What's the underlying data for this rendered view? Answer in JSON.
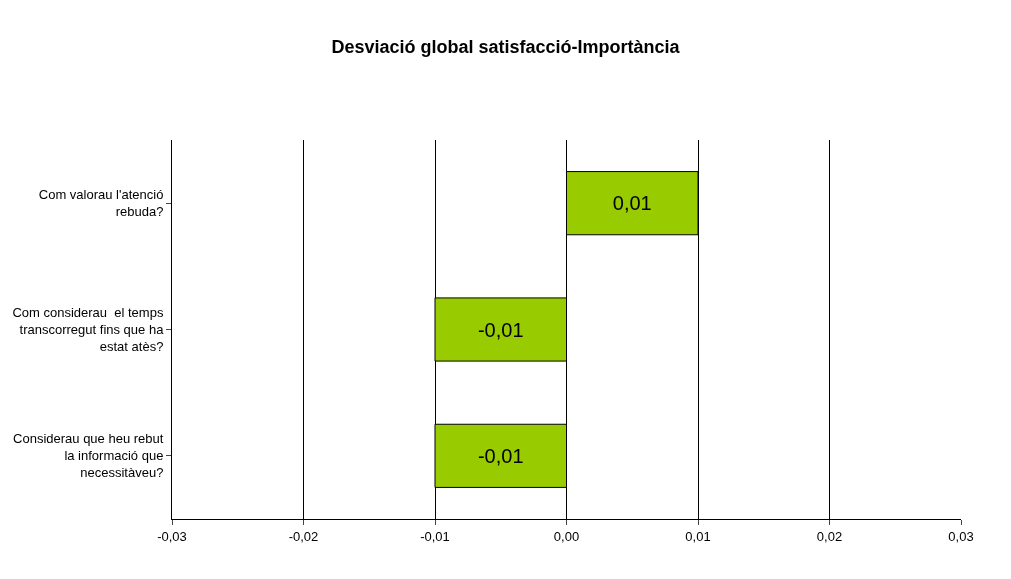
{
  "chart_data": {
    "type": "bar",
    "orientation": "horizontal",
    "title": "Desviació global satisfacció-Importància",
    "categories": [
      "Com valorau l'atenció rebuda?",
      "Com considerau  el temps transcorregut fins que ha estat atès?",
      "Considerau que heu rebut la informació que necessitàveu?"
    ],
    "values": [
      0.01,
      -0.01,
      -0.01
    ],
    "value_labels": [
      "0,01",
      "-0,01",
      "-0,01"
    ],
    "color": "#99cc00",
    "xlim": [
      -0.03,
      0.03
    ],
    "xticks": [
      {
        "value": -0.03,
        "label": "-0,03"
      },
      {
        "value": -0.02,
        "label": "-0,02"
      },
      {
        "value": -0.01,
        "label": "-0,01"
      },
      {
        "value": 0,
        "label": "0,00"
      },
      {
        "value": 0.01,
        "label": "0,01"
      },
      {
        "value": 0.02,
        "label": "0,02"
      },
      {
        "value": 0.03,
        "label": "0,03"
      }
    ],
    "grid": "x",
    "legend": false
  }
}
